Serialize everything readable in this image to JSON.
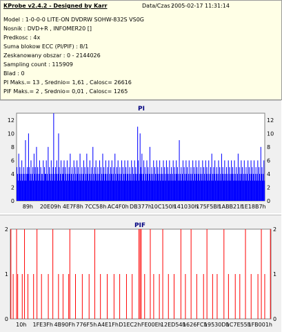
{
  "header": {
    "title": "KProbe v2.4.2 - Designed by Karr",
    "datetime_label": "Data/Czas :",
    "datetime_value": "2005-02-17 11:31:14",
    "lines": [
      "Model : 1-0-0-0 LITE-ON DVDRW SOHW-832S  VS0G",
      "Nosnik : DVD+R , INFOMER20 []",
      "Predkosc : 4x",
      "Suma blokow ECC (PI/PIF) : 8/1",
      "Zeskanowany obszar : 0 - 2144026",
      "Sampling count : 115909",
      "Blad : 0",
      "PI Maks.= 13 , Srednio= 1,61 , Calosc= 26616",
      "PIF Maks.= 2 , Srednio= 0,01 , Calosc= 1265"
    ]
  },
  "colors": {
    "pi": "#0000ff",
    "pif": "#ff0000",
    "title": "#000080",
    "panel": "#f0f0f0"
  },
  "chart_data": [
    {
      "type": "bar",
      "title": "PI",
      "ylim": [
        0,
        13
      ],
      "yticks": [
        "0",
        "2",
        "4",
        "6",
        "8",
        "10",
        "12"
      ],
      "xticks": [
        "89h",
        "20E09h",
        "4E7F8h",
        "7CC58h",
        "AC4F0h",
        "DB377h",
        "10C150h",
        "141030h",
        "175F5Bh",
        "1ABB21h",
        "1E18B7h"
      ],
      "values": [
        5,
        4,
        3,
        7,
        4,
        5,
        3,
        4,
        6,
        3,
        4,
        5,
        3,
        4,
        9,
        3,
        4,
        5,
        4,
        10,
        5,
        3,
        4,
        6,
        3,
        4,
        5,
        3,
        7,
        4,
        5,
        3,
        8,
        4,
        5,
        3,
        4,
        6,
        3,
        5,
        4,
        3,
        4,
        6,
        3,
        5,
        4,
        4,
        6,
        3,
        4,
        8,
        3,
        5,
        4,
        3,
        6,
        4,
        3,
        5,
        13,
        4,
        3,
        5,
        4,
        6,
        3,
        4,
        10,
        5,
        3,
        4,
        6,
        3,
        4,
        5,
        4,
        6,
        3,
        5,
        4,
        3,
        6,
        4,
        3,
        5,
        4,
        7,
        3,
        4,
        5,
        3,
        4,
        6,
        3,
        5,
        4,
        3,
        6,
        4,
        5,
        3,
        4,
        7,
        3,
        4,
        5,
        3,
        4,
        6,
        3,
        5,
        4,
        3,
        7,
        4,
        5,
        3,
        4,
        6,
        3,
        4,
        5,
        3,
        8,
        4,
        3,
        5,
        4,
        6,
        3,
        4,
        5,
        3,
        4,
        6,
        3,
        5,
        4,
        3,
        7,
        4,
        5,
        3,
        4,
        6,
        3,
        4,
        5,
        3,
        6,
        4,
        3,
        5,
        4,
        6,
        3,
        4,
        5,
        3,
        7,
        4,
        3,
        5,
        4,
        6,
        3,
        4,
        5,
        3,
        4,
        6,
        3,
        5,
        4,
        3,
        6,
        4,
        5,
        3,
        4,
        6,
        3,
        4,
        5,
        3,
        4,
        6,
        3,
        5,
        4,
        3,
        6,
        4,
        5,
        3,
        4,
        11,
        6,
        3,
        4,
        10,
        5,
        4,
        7,
        3,
        4,
        6,
        3,
        5,
        4,
        3,
        6,
        4,
        5,
        3,
        4,
        8,
        3,
        4,
        5,
        3,
        4,
        6,
        3,
        5,
        4,
        3,
        6,
        4,
        5,
        3,
        4,
        6,
        3,
        4,
        5,
        3,
        4,
        6,
        3,
        5,
        4,
        3,
        6,
        4,
        5,
        3,
        4,
        6,
        3,
        4,
        5,
        3,
        4,
        6,
        3,
        5,
        4,
        3,
        6,
        4,
        5,
        3,
        4,
        9,
        3,
        4,
        5,
        3,
        4,
        6,
        3,
        5,
        4,
        3,
        6,
        4,
        5,
        3,
        4,
        6,
        3,
        4,
        5,
        3,
        4,
        6,
        3,
        5,
        4,
        3,
        6,
        4,
        5,
        3,
        4,
        6,
        3,
        4,
        5,
        3,
        4,
        6,
        3,
        5,
        4,
        3,
        6,
        4,
        5,
        3,
        4,
        6,
        3,
        4,
        5,
        3,
        7,
        4,
        3,
        5,
        4,
        6,
        3,
        4,
        5,
        3,
        4,
        6,
        3,
        5,
        4,
        3,
        7,
        4,
        5,
        3,
        4,
        6,
        3,
        4,
        5,
        3,
        4,
        6,
        3,
        5,
        4,
        3,
        6,
        4,
        5,
        3,
        4,
        6,
        3,
        4,
        5,
        3,
        4,
        7,
        3,
        5,
        4,
        3,
        6,
        4,
        5,
        3,
        4,
        6,
        3,
        4,
        5,
        3,
        4,
        6,
        3,
        5,
        4,
        3,
        6,
        4,
        5,
        3,
        4,
        6,
        3,
        4,
        5,
        3,
        4,
        6,
        3,
        5,
        4,
        3,
        8,
        4,
        5,
        3,
        4,
        6,
        3
      ]
    },
    {
      "type": "bar",
      "title": "PIF",
      "ylim": [
        0,
        2
      ],
      "yticks": [
        "0",
        "1",
        "2"
      ],
      "xticks": [
        "10h",
        "1FE3Fh",
        "4B90Fh",
        "776F5h",
        "A4E1Fh",
        "D1EC2h",
        "FE00Eh",
        "12ED54h",
        "1626FCh",
        "19530Dh",
        "1C7E55h",
        "1FB001h"
      ],
      "values": [
        2,
        0,
        1,
        0,
        0,
        2,
        1,
        0,
        0,
        0,
        1,
        0,
        2,
        0,
        0,
        1,
        0,
        0,
        0,
        0,
        1,
        0,
        0,
        2,
        0,
        0,
        0,
        1,
        0,
        0,
        0,
        0,
        0,
        1,
        0,
        0,
        0,
        2,
        0,
        0,
        0,
        0,
        1,
        0,
        0,
        0,
        1,
        0,
        0,
        0,
        0,
        1,
        2,
        0,
        0,
        0,
        0,
        1,
        0,
        0,
        0,
        0,
        0,
        1,
        0,
        0,
        0,
        0,
        0,
        1,
        0,
        0,
        0,
        0,
        2,
        0,
        0,
        0,
        0,
        1,
        0,
        0,
        0,
        0,
        0,
        1,
        0,
        0,
        0,
        0,
        0,
        1,
        0,
        0,
        0,
        0,
        1,
        0,
        0,
        0,
        0,
        0,
        1,
        0,
        0,
        0,
        0,
        1,
        0,
        0,
        0,
        0,
        0,
        2,
        2,
        2,
        0,
        0,
        1,
        0,
        0,
        0,
        0,
        2,
        0,
        0,
        1,
        0,
        0,
        0,
        0,
        1,
        0,
        0,
        2,
        0,
        0,
        0,
        0,
        1,
        0,
        0,
        0,
        0,
        1,
        0,
        0,
        0,
        0,
        0,
        2,
        0,
        0,
        0,
        1,
        0,
        0,
        0,
        0,
        2,
        0,
        0,
        0,
        0,
        1,
        0,
        0,
        0,
        0,
        0,
        1,
        0,
        0,
        2,
        0,
        0,
        0,
        0,
        1,
        0,
        0,
        0,
        1,
        0,
        0,
        0,
        0,
        0,
        2,
        0,
        0,
        0,
        1,
        0,
        0,
        0,
        0,
        0,
        1,
        0,
        0,
        0,
        1,
        0,
        0,
        0,
        0,
        2,
        0,
        0,
        0,
        0,
        1,
        0,
        0,
        0,
        0,
        0,
        1,
        0,
        0,
        2,
        0,
        0,
        1,
        0,
        0,
        0,
        0,
        2
      ]
    }
  ]
}
